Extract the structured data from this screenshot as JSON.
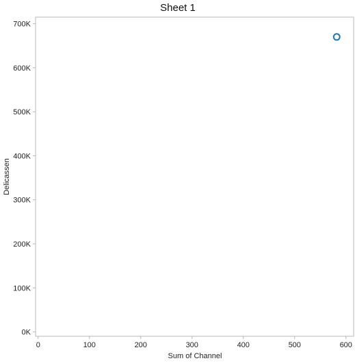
{
  "chart_data": {
    "type": "scatter",
    "title": "Sheet 1",
    "xlabel": "Sum of Channel",
    "ylabel": "Delicassen",
    "xlim": [
      -5,
      615
    ],
    "ylim": [
      -10000,
      715000
    ],
    "x_ticks": [
      0,
      100,
      200,
      300,
      400,
      500,
      600
    ],
    "x_tick_labels": [
      "0",
      "100",
      "200",
      "300",
      "400",
      "500",
      "600"
    ],
    "y_ticks": [
      0,
      100000,
      200000,
      300000,
      400000,
      500000,
      600000,
      700000
    ],
    "y_tick_labels": [
      "0K",
      "100K",
      "200K",
      "300K",
      "400K",
      "500K",
      "600K",
      "700K"
    ],
    "grid": false,
    "series": [
      {
        "marker": "hollow-circle",
        "color": "#1f77b4",
        "points": [
          {
            "x": 582,
            "y": 670000
          }
        ]
      }
    ]
  }
}
